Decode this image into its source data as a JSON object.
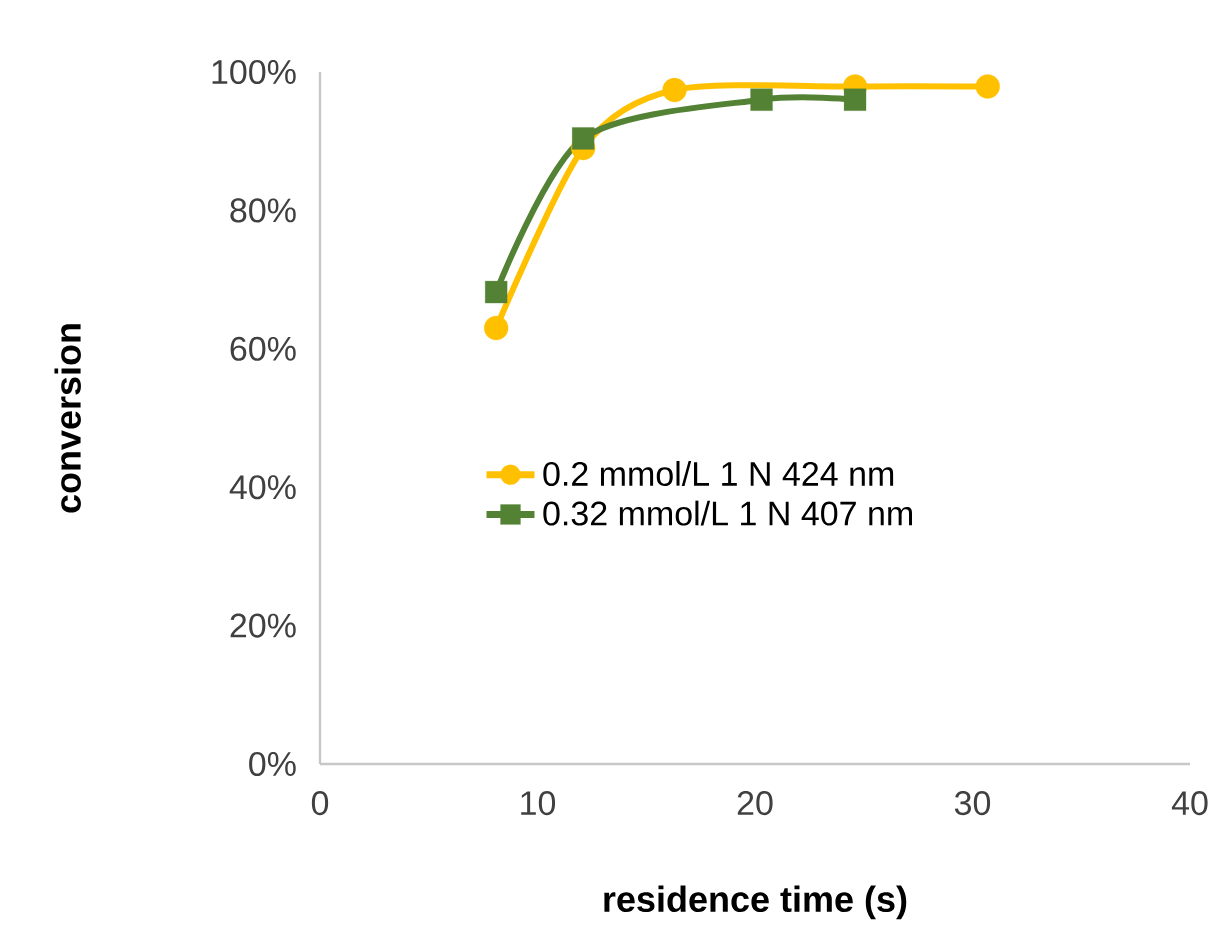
{
  "chart_data": {
    "type": "line",
    "xlabel": "residence time (s)",
    "ylabel": "conversion",
    "xlim": [
      0,
      40
    ],
    "xticks": [
      0,
      10,
      20,
      30,
      40
    ],
    "ylim": [
      0,
      100
    ],
    "yticks": [
      {
        "value": 0,
        "label": "0%"
      },
      {
        "value": 20,
        "label": "20%"
      },
      {
        "value": 40,
        "label": "40%"
      },
      {
        "value": 60,
        "label": "60%"
      },
      {
        "value": 80,
        "label": "80%"
      },
      {
        "value": 100,
        "label": "100%"
      }
    ],
    "legend": "left",
    "grid": false,
    "series": [
      {
        "name": "0.2 mmol/L 1 N 424 nm",
        "color": "#ffc000",
        "marker": "circle",
        "x": [
          8.1,
          12.1,
          16.3,
          24.6,
          30.7
        ],
        "values": [
          63,
          89,
          97.4,
          97.9,
          97.9
        ]
      },
      {
        "name": "0.32 mmol/L 1 N 407 nm",
        "color": "#548235",
        "marker": "square",
        "x": [
          8.1,
          12.1,
          20.3,
          24.6
        ],
        "values": [
          68.2,
          90.4,
          96,
          96
        ]
      }
    ]
  }
}
